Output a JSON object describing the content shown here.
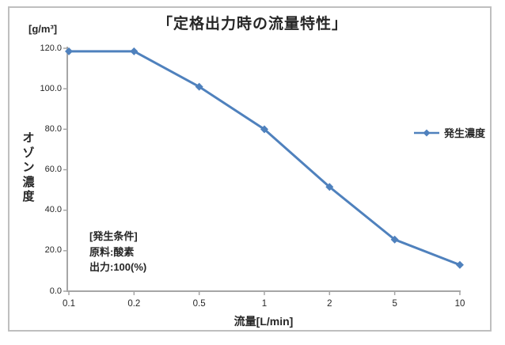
{
  "chart_data": {
    "type": "line",
    "title": "「定格出力時の流量特性」",
    "unit_label": "[g/m³]",
    "ylabel": "オゾン濃度",
    "xlabel": "流量[L/min]",
    "categories": [
      "0.1",
      "0.2",
      "0.5",
      "1",
      "2",
      "5",
      "10"
    ],
    "x_axis_scale": "log-like category axis, evenly spaced",
    "series": [
      {
        "name": "発生濃度",
        "values": [
          118.5,
          118.5,
          101.0,
          80.0,
          51.5,
          25.5,
          13.0
        ],
        "color": "#4F81BD",
        "marker": "diamond"
      }
    ],
    "y_ticks": [
      "0.0",
      "20.0",
      "40.0",
      "60.0",
      "80.0",
      "100.0",
      "120.0"
    ],
    "ylim": [
      0,
      120
    ],
    "grid": false,
    "legend_position": "right",
    "annotation": {
      "lines": [
        "[発生条件]",
        "原料:酸素",
        "出力:100(%)"
      ]
    },
    "colors": {
      "series_blue": "#4F81BD",
      "axis_gray": "#a6a6a6",
      "frame_border": "#bfbfbf",
      "text": "#262626"
    }
  }
}
